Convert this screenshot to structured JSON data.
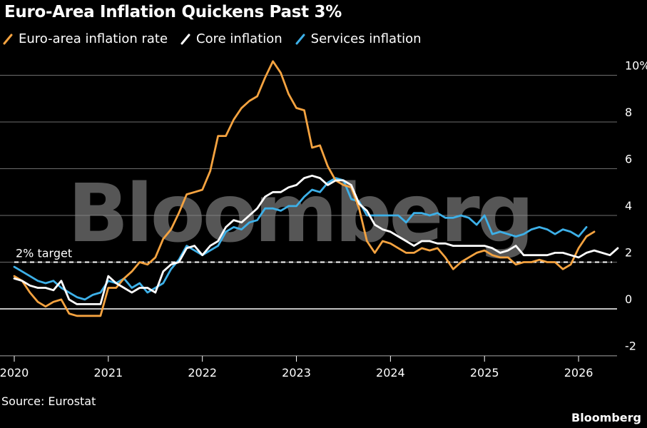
{
  "title": "Euro-Area Inflation Quickens Past 3%",
  "source": "Source: Eurostat",
  "brand": "Bloomberg",
  "watermark": "Bloomberg",
  "colors": {
    "background": "#000000",
    "headline": "#f5a340",
    "core": "#ffffff",
    "services": "#3db0e8",
    "grid": "#6e6e6e"
  },
  "chart_data": {
    "type": "line",
    "title": "Euro-Area Inflation Quickens Past 3%",
    "xlabel": "",
    "ylabel": "",
    "x_ticks": [
      "2020",
      "2021",
      "2022",
      "2023",
      "2024",
      "2025",
      "2026"
    ],
    "y_ticks": [
      "-2",
      "0",
      "2",
      "4",
      "6",
      "8",
      "10%"
    ],
    "y_tick_values": [
      -2,
      0,
      2,
      4,
      6,
      8,
      10
    ],
    "ylim": [
      -2,
      10.5
    ],
    "xlim": [
      "2020-01",
      "2026-06"
    ],
    "grid": true,
    "legend_position": "top-left",
    "annotation": {
      "label": "2% target",
      "value": 2
    },
    "start_month": "2020-01",
    "series": [
      {
        "name": "Euro-area inflation rate",
        "color": "#f5a340",
        "values": [
          1.4,
          1.2,
          0.7,
          0.3,
          0.1,
          0.3,
          0.4,
          -0.2,
          -0.3,
          -0.3,
          -0.3,
          -0.3,
          0.9,
          0.9,
          1.3,
          1.6,
          2.0,
          1.9,
          2.2,
          3.0,
          3.4,
          4.1,
          4.9,
          5.0,
          5.1,
          5.9,
          7.4,
          7.4,
          8.1,
          8.6,
          8.9,
          9.1,
          9.9,
          10.6,
          10.1,
          9.2,
          8.6,
          8.5,
          6.9,
          7.0,
          6.1,
          5.5,
          5.3,
          5.2,
          4.3,
          2.9,
          2.4,
          2.9,
          2.8,
          2.6,
          2.4,
          2.4,
          2.6,
          2.5,
          2.6,
          2.2,
          1.7,
          2.0,
          2.2,
          2.4,
          2.5,
          2.3,
          2.2,
          2.2,
          1.9,
          2.0,
          2.0,
          2.1,
          2.0,
          2.0,
          1.7,
          1.9,
          2.6,
          3.1,
          3.3
        ]
      },
      {
        "name": "Core inflation",
        "color": "#ffffff",
        "values": [
          1.3,
          1.2,
          1.0,
          0.9,
          0.9,
          0.8,
          1.2,
          0.4,
          0.2,
          0.2,
          0.2,
          0.2,
          1.4,
          1.1,
          0.9,
          0.7,
          0.9,
          0.9,
          0.7,
          1.6,
          1.9,
          2.0,
          2.6,
          2.7,
          2.3,
          2.7,
          2.9,
          3.5,
          3.8,
          3.7,
          4.0,
          4.3,
          4.8,
          5.0,
          5.0,
          5.2,
          5.3,
          5.6,
          5.7,
          5.6,
          5.3,
          5.5,
          5.5,
          5.3,
          4.5,
          4.2,
          3.6,
          3.4,
          3.3,
          3.1,
          2.9,
          2.7,
          2.9,
          2.9,
          2.8,
          2.8,
          2.7,
          2.7,
          2.7,
          2.7,
          2.7,
          2.6,
          2.4,
          2.5,
          2.7,
          2.3,
          2.3,
          2.3,
          2.3,
          2.4,
          2.4,
          2.3,
          2.2,
          2.4,
          2.5,
          2.4,
          2.3,
          2.6
        ]
      },
      {
        "name": "Services inflation",
        "color": "#3db0e8",
        "values": [
          1.8,
          1.6,
          1.4,
          1.2,
          1.1,
          1.2,
          0.9,
          0.7,
          0.5,
          0.4,
          0.6,
          0.7,
          1.2,
          1.1,
          1.3,
          0.9,
          1.1,
          0.7,
          0.9,
          1.1,
          1.7,
          2.1,
          2.7,
          2.5,
          2.3,
          2.5,
          2.7,
          3.3,
          3.5,
          3.4,
          3.7,
          3.8,
          4.3,
          4.3,
          4.2,
          4.4,
          4.4,
          4.8,
          5.1,
          5.0,
          5.4,
          5.6,
          5.5,
          4.7,
          4.6,
          4.0,
          4.0,
          4.0,
          4.0,
          4.0,
          3.7,
          4.1,
          4.1,
          4.0,
          4.1,
          3.9,
          3.9,
          4.0,
          3.9,
          3.6,
          4.0,
          3.2,
          3.3,
          3.2,
          3.1,
          3.2,
          3.4,
          3.5,
          3.4,
          3.2,
          3.4,
          3.3,
          3.1,
          3.5
        ]
      }
    ]
  }
}
